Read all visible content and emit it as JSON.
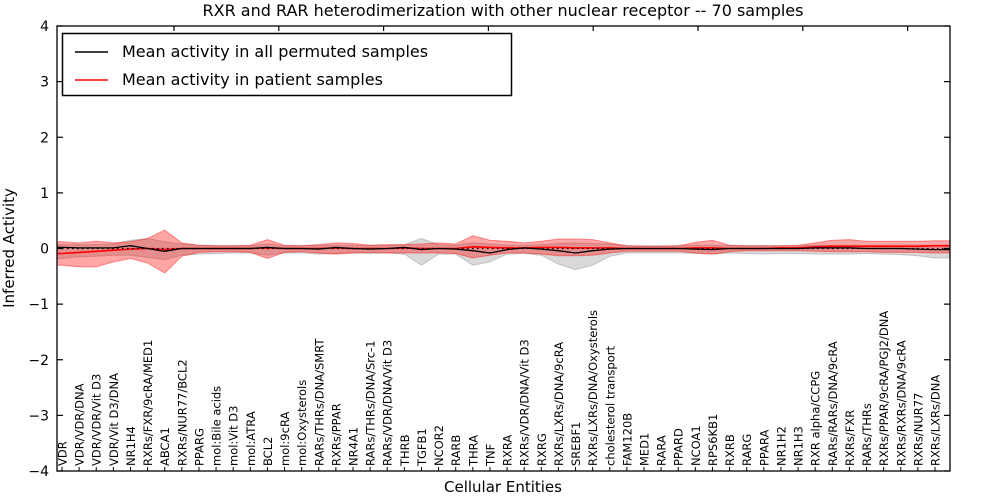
{
  "chart_data": {
    "type": "area",
    "title": "RXR and RAR heterodimerization with other nuclear receptor -- 70 samples",
    "xlabel": "Cellular Entities",
    "ylabel": "Inferred Activity",
    "ylim": [
      -4,
      4
    ],
    "grid": false,
    "legend_position": "upper left",
    "legend": [
      {
        "label": "Mean activity in all permuted samples",
        "color": "#000000"
      },
      {
        "label": "Mean activity in patient samples",
        "color": "#ff0000"
      }
    ],
    "colors": {
      "permuted_line": "#000000",
      "patient_line": "#ff0000",
      "permuted_band_fill": "rgba(120,120,120,0.28)",
      "permuted_band_stroke": "rgba(120,120,120,0.35)",
      "patient_band_fill": "rgba(255,0,0,0.35)",
      "patient_band_stroke": "rgba(255,0,0,0.40)",
      "zero_line": "#000000"
    },
    "yticks": [
      {
        "value": 4,
        "label": "4"
      },
      {
        "value": 3,
        "label": "3"
      },
      {
        "value": 2,
        "label": "2"
      },
      {
        "value": 1,
        "label": "1"
      },
      {
        "value": 0,
        "label": "0"
      },
      {
        "value": -1,
        "label": "−1"
      },
      {
        "value": -2,
        "label": "−2"
      },
      {
        "value": -3,
        "label": "−3"
      },
      {
        "value": -4,
        "label": "−4"
      }
    ],
    "entities": [
      "VDR",
      "VDR/VDR/DNA",
      "VDR/VDR/Vit D3",
      "VDR/Vit D3/DNA",
      "NR1H4",
      "RXRs/FXR/9cRA/MED1",
      "ABCA1",
      "RXRs/NUR77/BCL2",
      "PPARG",
      "mol:Bile acids",
      "mol:Vit D3",
      "mol:ATRA",
      "BCL2",
      "mol:9cRA",
      "mol:Oxysterols",
      "RARs/THRs/DNA/SMRT",
      "RXRs/PPAR",
      "NR4A1",
      "RARs/THRs/DNA/Src-1",
      "RARs/VDR/DNA/Vit D3",
      "THRB",
      "TGFB1",
      "NCOR2",
      "RARB",
      "THRA",
      "TNF",
      "RXRA",
      "RXRs/VDR/DNA/Vit D3",
      "RXRG",
      "RXRs/LXRs/DNA/9cRA",
      "SREBF1",
      "RXRs/LXRs/DNA/Oxysterols",
      "cholesterol transport",
      "FAM120B",
      "MED1",
      "RARA",
      "PPARD",
      "NCOA1",
      "RPS6KB1",
      "RXRB",
      "RARG",
      "PPARA",
      "NR1H2",
      "NR1H3",
      "RXR alpha/CCPG",
      "RARs/RARs/DNA/9cRA",
      "RXRs/FXR",
      "RARs/THRs",
      "RXRs/PPAR/9cRA/PGJ2/DNA",
      "RXRs/RXRs/DNA/9cRA",
      "RXRs/NUR77",
      "RXRs/LXRs/DNA"
    ],
    "series": {
      "permuted_band_lower": [
        -0.18,
        -0.15,
        -0.14,
        -0.12,
        -0.12,
        -0.16,
        -0.2,
        -0.12,
        -0.1,
        -0.09,
        -0.08,
        -0.08,
        -0.12,
        -0.08,
        -0.08,
        -0.1,
        -0.09,
        -0.08,
        -0.09,
        -0.08,
        -0.1,
        -0.3,
        -0.1,
        -0.1,
        -0.3,
        -0.24,
        -0.1,
        -0.09,
        -0.12,
        -0.28,
        -0.38,
        -0.3,
        -0.14,
        -0.08,
        -0.08,
        -0.08,
        -0.08,
        -0.09,
        -0.1,
        -0.08,
        -0.09,
        -0.1,
        -0.09,
        -0.09,
        -0.1,
        -0.1,
        -0.1,
        -0.09,
        -0.1,
        -0.11,
        -0.13,
        -0.17
      ],
      "permuted_band_upper": [
        0.07,
        0.07,
        0.07,
        0.08,
        0.15,
        0.18,
        0.12,
        0.08,
        0.06,
        0.05,
        0.05,
        0.05,
        0.08,
        0.05,
        0.05,
        0.06,
        0.06,
        0.06,
        0.06,
        0.06,
        0.07,
        0.18,
        0.07,
        0.06,
        0.1,
        0.08,
        0.06,
        0.06,
        0.07,
        0.09,
        0.1,
        0.09,
        0.08,
        0.05,
        0.05,
        0.05,
        0.05,
        0.06,
        0.06,
        0.05,
        0.05,
        0.05,
        0.05,
        0.05,
        0.06,
        0.06,
        0.06,
        0.06,
        0.06,
        0.06,
        0.06,
        0.06
      ],
      "patient_band_lower": [
        -0.3,
        -0.33,
        -0.33,
        -0.24,
        -0.18,
        -0.26,
        -0.44,
        -0.14,
        -0.07,
        -0.06,
        -0.06,
        -0.07,
        -0.18,
        -0.07,
        -0.06,
        -0.08,
        -0.1,
        -0.08,
        -0.07,
        -0.08,
        -0.08,
        -0.08,
        -0.08,
        -0.09,
        -0.17,
        -0.12,
        -0.08,
        -0.08,
        -0.1,
        -0.13,
        -0.13,
        -0.12,
        -0.08,
        -0.05,
        -0.05,
        -0.05,
        -0.05,
        -0.08,
        -0.1,
        -0.06,
        -0.04,
        -0.04,
        -0.04,
        -0.04,
        -0.05,
        -0.06,
        -0.06,
        -0.06,
        -0.07,
        -0.07,
        -0.07,
        -0.08
      ],
      "patient_band_upper": [
        0.12,
        0.1,
        0.13,
        0.1,
        0.12,
        0.18,
        0.33,
        0.1,
        0.06,
        0.05,
        0.05,
        0.06,
        0.16,
        0.06,
        0.05,
        0.07,
        0.1,
        0.09,
        0.06,
        0.07,
        0.07,
        0.08,
        0.1,
        0.08,
        0.23,
        0.15,
        0.13,
        0.1,
        0.13,
        0.17,
        0.17,
        0.16,
        0.1,
        0.05,
        0.04,
        0.04,
        0.05,
        0.11,
        0.15,
        0.06,
        0.05,
        0.05,
        0.05,
        0.06,
        0.1,
        0.15,
        0.16,
        0.13,
        0.13,
        0.13,
        0.13,
        0.14
      ],
      "permuted_mean": [
        0.02,
        0.01,
        0.01,
        0.01,
        0.05,
        0.0,
        -0.05,
        0.0,
        0.0,
        0.0,
        0.0,
        0.0,
        0.02,
        0.0,
        0.0,
        -0.01,
        0.02,
        0.0,
        -0.01,
        0.0,
        0.02,
        -0.02,
        0.0,
        -0.01,
        -0.04,
        -0.08,
        -0.02,
        0.01,
        -0.01,
        -0.04,
        -0.08,
        -0.04,
        -0.01,
        0.0,
        0.0,
        0.0,
        0.0,
        -0.01,
        -0.02,
        0.0,
        0.0,
        0.0,
        0.0,
        0.0,
        0.01,
        0.01,
        0.01,
        0.0,
        0.0,
        0.0,
        -0.01,
        -0.02
      ],
      "patient_mean": [
        -0.09,
        -0.07,
        -0.05,
        -0.03,
        -0.01,
        0.0,
        -0.02,
        0.0,
        0.0,
        0.0,
        0.0,
        0.0,
        0.01,
        0.0,
        0.0,
        0.0,
        0.01,
        0.0,
        0.0,
        0.0,
        0.01,
        0.0,
        0.0,
        0.0,
        0.03,
        0.02,
        0.01,
        0.01,
        0.02,
        0.02,
        0.01,
        0.01,
        0.01,
        0.0,
        0.0,
        0.0,
        0.0,
        0.01,
        0.01,
        0.0,
        0.0,
        0.0,
        0.01,
        0.01,
        0.03,
        0.04,
        0.04,
        0.04,
        0.04,
        0.04,
        0.04,
        0.05
      ],
      "zero_reference": 0
    }
  }
}
